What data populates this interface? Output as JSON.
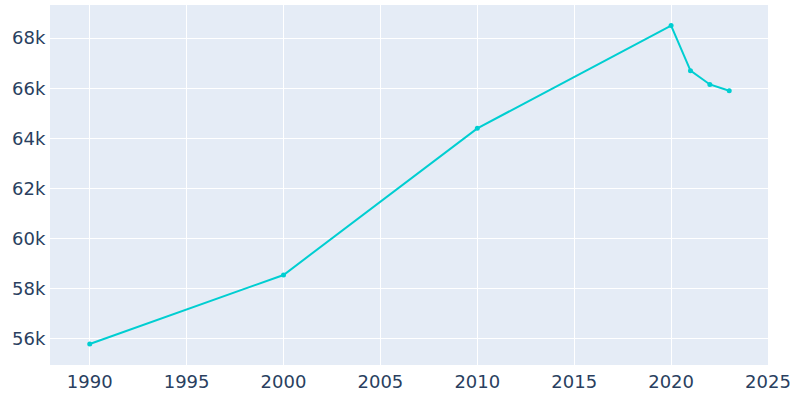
{
  "chart_data": {
    "type": "line",
    "x": [
      1990,
      2000,
      2010,
      2020,
      2021,
      2022,
      2023
    ],
    "values": [
      55800,
      58550,
      64400,
      68500,
      66700,
      66150,
      65900
    ],
    "color": "#00ced1",
    "marker": "circle",
    "xlim": [
      1987.95,
      2025
    ],
    "xticks": [
      1990,
      1995,
      2000,
      2005,
      2010,
      2015,
      2020,
      2025
    ],
    "ylim": [
      54960,
      69320
    ],
    "yticks": [
      {
        "value": 56000,
        "label": "56k"
      },
      {
        "value": 58000,
        "label": "58k"
      },
      {
        "value": 60000,
        "label": "60k"
      },
      {
        "value": 62000,
        "label": "62k"
      },
      {
        "value": 64000,
        "label": "64k"
      },
      {
        "value": 66000,
        "label": "66k"
      },
      {
        "value": 68000,
        "label": "68k"
      }
    ],
    "grid": true
  }
}
